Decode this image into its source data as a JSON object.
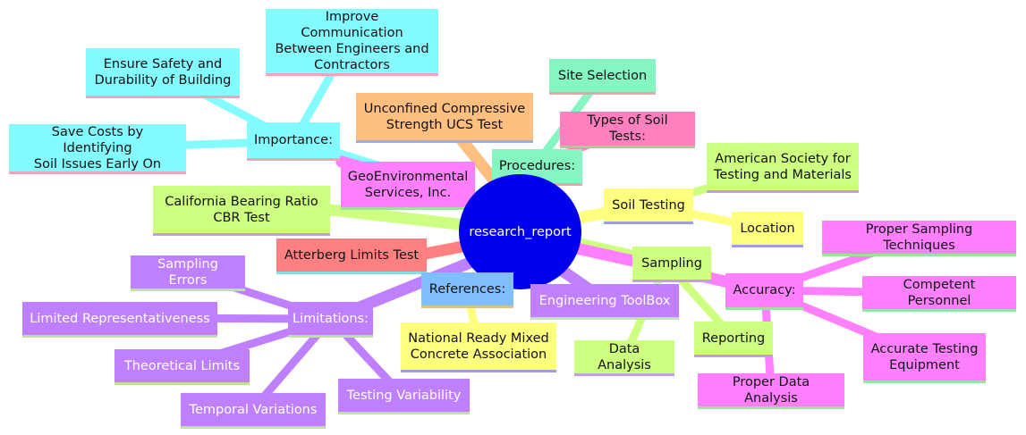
{
  "diagram": {
    "root": "research_report",
    "importance": {
      "label": "Importance:",
      "children": [
        "Improve Communication\nBetween Engineers and\nContractors",
        "Ensure Safety and\nDurability of Building",
        "Save Costs by Identifying\nSoil Issues Early On"
      ]
    },
    "unconfined": "Unconfined Compressive\nStrength UCS Test",
    "procedures": {
      "label": "Procedures:",
      "children": [
        "Site Selection",
        "Types of Soil Tests:"
      ]
    },
    "geoenvironmental": "GeoEnvironmental\nServices, Inc.",
    "california": "California Bearing Ratio\nCBR Test",
    "atterberg": "Atterberg Limits Test",
    "soil_testing": {
      "label": "Soil Testing",
      "children": [
        "American Society for\nTesting and Materials",
        "Location"
      ]
    },
    "sampling": {
      "label": "Sampling",
      "children": [
        "Data Analysis",
        "Reporting"
      ]
    },
    "accuracy": {
      "label": "Accuracy:",
      "children": [
        "Proper Sampling Techniques",
        "Competent Personnel",
        "Accurate Testing\nEquipment",
        "Proper Data Analysis"
      ]
    },
    "references": {
      "label": "References:",
      "children": [
        "National Ready Mixed\nConcrete Association"
      ]
    },
    "engineering_toolbox": "Engineering ToolBox",
    "limitations": {
      "label": "Limitations:",
      "children": [
        "Sampling Errors",
        "Limited Representativeness",
        "Theoretical Limits",
        "Temporal Variations",
        "Testing Variability"
      ]
    }
  }
}
